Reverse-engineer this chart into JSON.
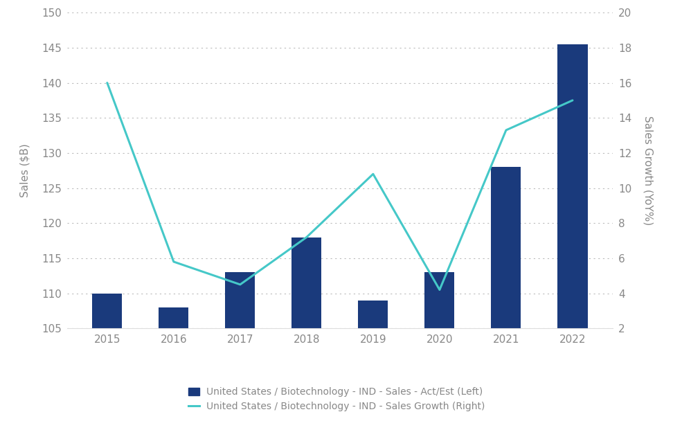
{
  "years": [
    2015,
    2016,
    2017,
    2018,
    2019,
    2020,
    2021,
    2022
  ],
  "sales": [
    110,
    108,
    113,
    118,
    109,
    113,
    128,
    145.5
  ],
  "growth": [
    16.0,
    5.8,
    4.5,
    7.2,
    10.8,
    4.2,
    13.3,
    15.0
  ],
  "bar_color": "#1a3a7c",
  "line_color": "#45c8c8",
  "left_ylim": [
    105,
    150
  ],
  "left_yticks": [
    105,
    110,
    115,
    120,
    125,
    130,
    135,
    140,
    145,
    150
  ],
  "right_ylim": [
    2,
    20
  ],
  "right_yticks": [
    2,
    4,
    6,
    8,
    10,
    12,
    14,
    16,
    18,
    20
  ],
  "ylabel_left": "Sales ($B)",
  "ylabel_right": "Sales Growth (YoY%)",
  "legend1": "United States / Biotechnology - IND - Sales - Act/Est (Left)",
  "legend2": "United States / Biotechnology - IND - Sales Growth (Right)",
  "bg_color": "#ffffff",
  "grid_color": "#bbbbbb",
  "bar_width": 0.45,
  "tick_color": "#888888",
  "label_fontsize": 11,
  "tick_fontsize": 11
}
